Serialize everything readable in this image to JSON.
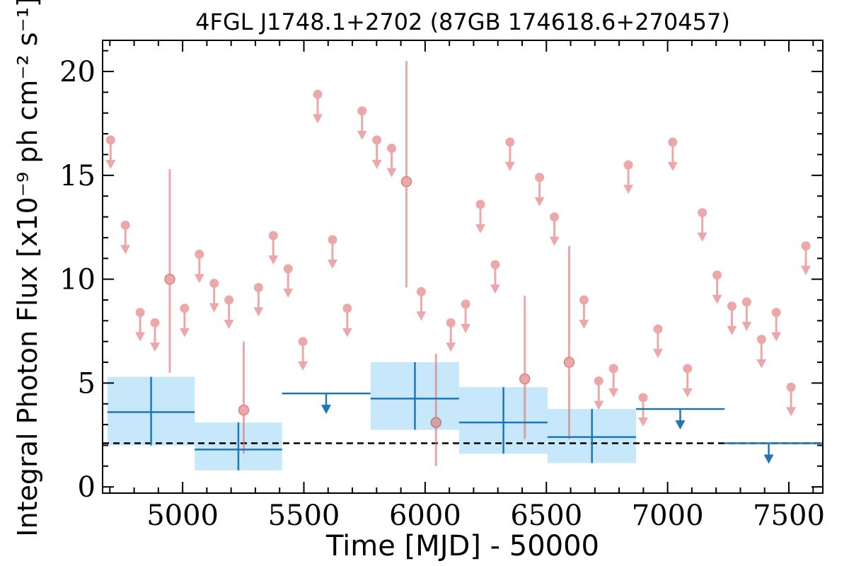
{
  "chart_data": {
    "type": "scatter",
    "title": "4FGL J1748.1+2702 (87GB 174618.6+270457)",
    "xlabel": "Time [MJD] - 50000",
    "ylabel": "Integral Photon Flux [x10⁻⁹ ph cm⁻² s⁻¹]",
    "xlim": [
      4670,
      7640
    ],
    "ylim": [
      -0.3,
      21.5
    ],
    "x_ticks": [
      5000,
      5500,
      6000,
      6500,
      7000,
      7500
    ],
    "x_tick_labels": [
      "5000",
      "5500",
      "6000",
      "6500",
      "7000",
      "7500"
    ],
    "y_ticks": [
      0,
      5,
      10,
      15,
      20
    ],
    "y_tick_labels": [
      "0",
      "5",
      "10",
      "15",
      "20"
    ],
    "grid": false,
    "reference_line": {
      "y": 2.1,
      "style": "dashed",
      "color": "#000000"
    },
    "colors": {
      "short_bins": "#e07070",
      "long_bins": "#1f77b4",
      "long_bins_fill": "#c6e8fa"
    },
    "series": [
      {
        "role": "short_bins_upper_limits",
        "points": [
          {
            "x": 4703,
            "y": 16.7
          },
          {
            "x": 4764,
            "y": 12.6
          },
          {
            "x": 4825,
            "y": 8.4
          },
          {
            "x": 4886,
            "y": 7.9
          },
          {
            "x": 5008,
            "y": 8.6
          },
          {
            "x": 5069,
            "y": 11.2
          },
          {
            "x": 5130,
            "y": 9.8
          },
          {
            "x": 5191,
            "y": 9.0
          },
          {
            "x": 5313,
            "y": 9.6
          },
          {
            "x": 5374,
            "y": 12.1
          },
          {
            "x": 5435,
            "y": 10.5
          },
          {
            "x": 5496,
            "y": 7.0
          },
          {
            "x": 5557,
            "y": 18.9
          },
          {
            "x": 5618,
            "y": 11.9
          },
          {
            "x": 5679,
            "y": 8.6
          },
          {
            "x": 5740,
            "y": 18.1
          },
          {
            "x": 5801,
            "y": 16.7
          },
          {
            "x": 5862,
            "y": 16.3
          },
          {
            "x": 5984,
            "y": 9.4
          },
          {
            "x": 6106,
            "y": 7.9
          },
          {
            "x": 6167,
            "y": 8.8
          },
          {
            "x": 6228,
            "y": 13.6
          },
          {
            "x": 6289,
            "y": 10.7
          },
          {
            "x": 6350,
            "y": 16.6
          },
          {
            "x": 6472,
            "y": 14.9
          },
          {
            "x": 6533,
            "y": 13.0
          },
          {
            "x": 6655,
            "y": 9.0
          },
          {
            "x": 6716,
            "y": 5.1
          },
          {
            "x": 6777,
            "y": 5.7
          },
          {
            "x": 6838,
            "y": 15.5
          },
          {
            "x": 6899,
            "y": 4.3
          },
          {
            "x": 6960,
            "y": 7.6
          },
          {
            "x": 7021,
            "y": 16.6
          },
          {
            "x": 7082,
            "y": 5.7
          },
          {
            "x": 7143,
            "y": 13.2
          },
          {
            "x": 7204,
            "y": 10.2
          },
          {
            "x": 7265,
            "y": 8.7
          },
          {
            "x": 7326,
            "y": 8.9
          },
          {
            "x": 7387,
            "y": 7.1
          },
          {
            "x": 7448,
            "y": 8.4
          },
          {
            "x": 7509,
            "y": 4.8
          },
          {
            "x": 7570,
            "y": 11.6
          }
        ]
      },
      {
        "role": "short_bins_detections",
        "points": [
          {
            "x": 4947,
            "y": 10.0,
            "ylow": 5.5,
            "yhigh": 15.3
          },
          {
            "x": 5252,
            "y": 3.7,
            "ylow": 1.6,
            "yhigh": 7.0
          },
          {
            "x": 5923,
            "y": 14.7,
            "ylow": 9.6,
            "yhigh": 20.5
          },
          {
            "x": 6045,
            "y": 3.1,
            "ylow": 1.0,
            "yhigh": 6.4
          },
          {
            "x": 6411,
            "y": 5.2,
            "ylow": 2.3,
            "yhigh": 9.2
          },
          {
            "x": 6594,
            "y": 6.0,
            "ylow": 2.3,
            "yhigh": 11.6
          }
        ]
      },
      {
        "role": "long_bins_detections",
        "points": [
          {
            "x0": 4690,
            "x1": 5050,
            "x": 4870,
            "y": 3.6,
            "ylow": 2.0,
            "yhigh": 5.3
          },
          {
            "x0": 5050,
            "x1": 5410,
            "x": 5230,
            "y": 1.8,
            "ylow": 0.8,
            "yhigh": 3.1
          },
          {
            "x0": 5775,
            "x1": 6140,
            "x": 5958,
            "y": 4.25,
            "ylow": 2.75,
            "yhigh": 6.0
          },
          {
            "x0": 6140,
            "x1": 6505,
            "x": 6323,
            "y": 3.1,
            "ylow": 1.6,
            "yhigh": 4.8
          },
          {
            "x0": 6505,
            "x1": 6870,
            "x": 6688,
            "y": 2.4,
            "ylow": 1.15,
            "yhigh": 3.75
          }
        ]
      },
      {
        "role": "long_bins_upper_limits",
        "points": [
          {
            "x0": 5410,
            "x1": 5775,
            "x": 5592,
            "y": 4.5
          },
          {
            "x0": 6870,
            "x1": 7235,
            "x": 7052,
            "y": 3.75
          },
          {
            "x0": 7235,
            "x1": 7640,
            "x": 7417,
            "y": 2.1
          }
        ]
      }
    ]
  }
}
